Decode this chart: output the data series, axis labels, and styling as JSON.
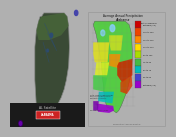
{
  "bg_color": "#b0b0b0",
  "left_panel": {
    "bg": "#111111",
    "state_body": "#3a4a35",
    "state_edge": "#888888",
    "north_green": "#4a6040",
    "water_blue": "#1a2a5a",
    "river_color": "#2a4a7a",
    "bottom_bar_bg": "#222222",
    "icon_red": "#cc2222",
    "purple_dot": "#330055",
    "top_dot": "#4444aa"
  },
  "right_panel": {
    "bg": "#e0e0e0",
    "title1": "Average Annual Precipitation",
    "title2": "Alabama",
    "border": "#999999",
    "text_color": "#111111"
  },
  "legend": {
    "title": "Percent of Normal",
    "colors": [
      "#cc0000",
      "#ee4400",
      "#ff8800",
      "#ffdd00",
      "#aadd00",
      "#44bb44",
      "#00bbbb",
      "#4444cc",
      "#9900cc"
    ],
    "labels": [
      "Extreme (>2)",
      "125 to 150",
      "110 to 125",
      "100 to 110",
      "90 to 100",
      "75 to 90",
      "50 to 75",
      "25 to 50",
      "Extreme (<0)"
    ]
  },
  "al_sat": {
    "x": [
      0.42,
      0.45,
      0.72,
      0.76,
      0.78,
      0.79,
      0.78,
      0.75,
      0.72,
      0.68,
      0.64,
      0.6,
      0.56,
      0.52,
      0.5,
      0.49,
      0.47,
      0.44,
      0.4,
      0.37,
      0.35,
      0.33,
      0.33,
      0.35,
      0.38,
      0.4,
      0.42
    ],
    "y": [
      0.94,
      0.97,
      0.97,
      0.94,
      0.86,
      0.68,
      0.52,
      0.4,
      0.32,
      0.25,
      0.2,
      0.15,
      0.11,
      0.09,
      0.1,
      0.11,
      0.12,
      0.13,
      0.14,
      0.14,
      0.18,
      0.4,
      0.68,
      0.82,
      0.9,
      0.94,
      0.94
    ]
  },
  "al_map": {
    "x": [
      0.08,
      0.1,
      0.48,
      0.53,
      0.56,
      0.57,
      0.56,
      0.53,
      0.5,
      0.46,
      0.43,
      0.4,
      0.37,
      0.35,
      0.33,
      0.32,
      0.3,
      0.28,
      0.25,
      0.22,
      0.18,
      0.12,
      0.08,
      0.08
    ],
    "y": [
      0.87,
      0.9,
      0.9,
      0.87,
      0.79,
      0.62,
      0.48,
      0.38,
      0.3,
      0.23,
      0.18,
      0.14,
      0.12,
      0.13,
      0.14,
      0.15,
      0.16,
      0.16,
      0.17,
      0.25,
      0.55,
      0.78,
      0.87,
      0.87
    ]
  }
}
